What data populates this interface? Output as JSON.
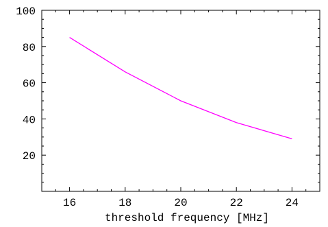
{
  "chart_data": {
    "type": "line",
    "title": "",
    "xlabel": "threshold frequency [MHz]",
    "ylabel": "",
    "xlim": [
      15,
      25
    ],
    "ylim": [
      0,
      100
    ],
    "x_ticks": [
      16,
      18,
      20,
      22,
      24
    ],
    "y_ticks": [
      20,
      40,
      60,
      80,
      100
    ],
    "grid": false,
    "series": [
      {
        "color": "#ff00ff",
        "x": [
          16,
          18,
          20,
          22,
          24
        ],
        "y": [
          85,
          66,
          50,
          38,
          29
        ]
      }
    ]
  }
}
